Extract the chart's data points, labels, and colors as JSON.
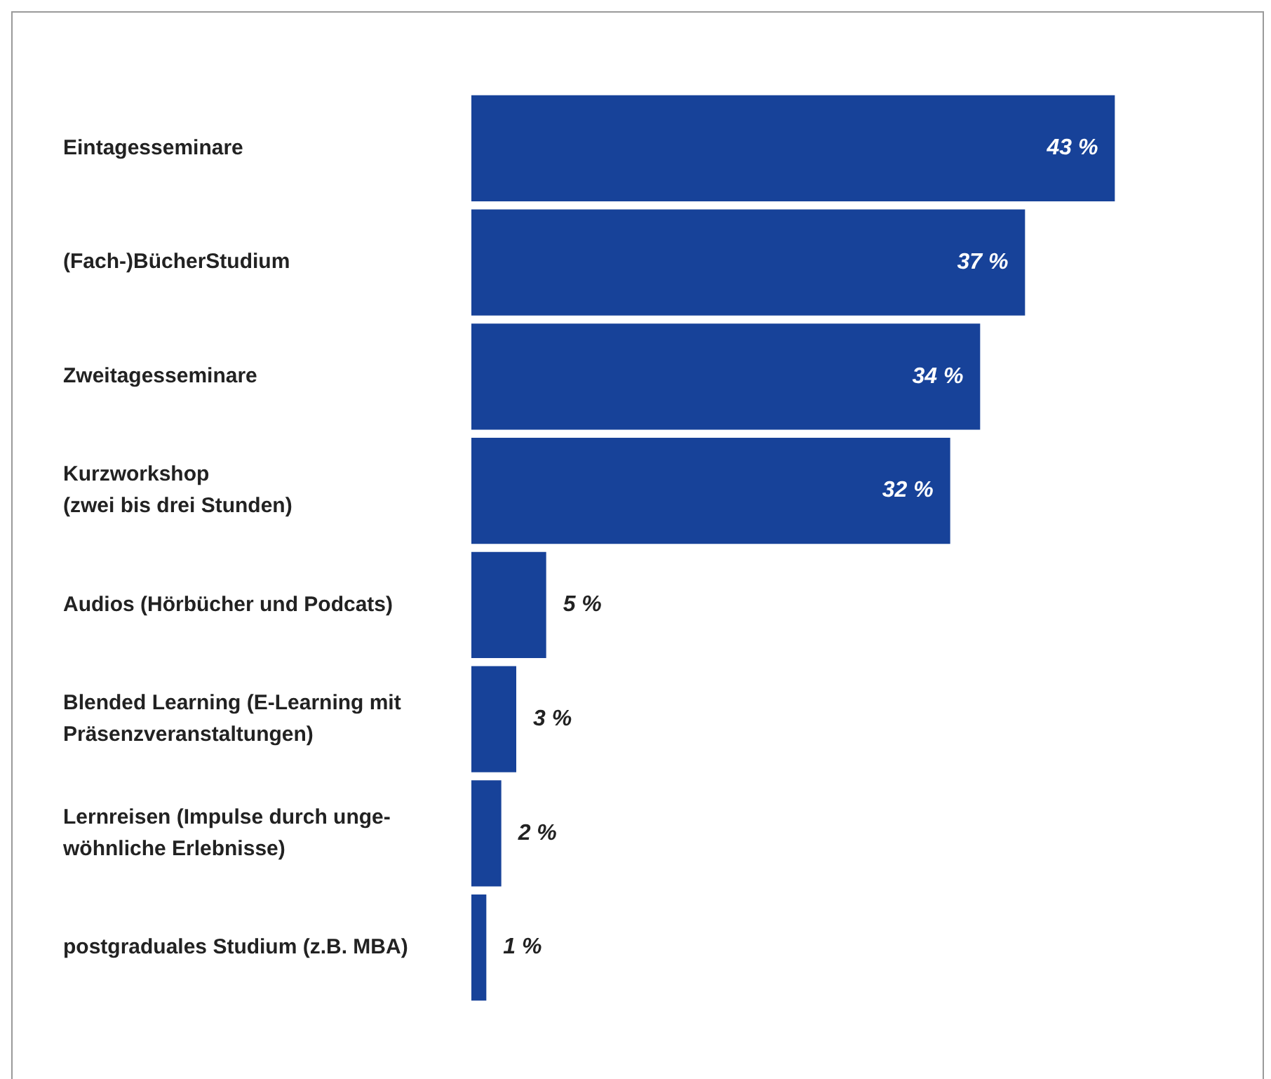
{
  "chart_data": {
    "type": "bar",
    "orientation": "horizontal",
    "categories": [
      "Eintagesseminare",
      "(Fach-)BücherStudium",
      "Zweitagesseminare",
      "Kurzworkshop\n(zwei bis drei Stunden)",
      "Audios (Hörbücher und Podcats)",
      "Blended Learning (E-Learning mit\nPräsenzveranstaltungen)",
      "Lernreisen (Impulse durch unge-\nwöhnliche Erlebnisse)",
      "postgraduales Studium (z.B. MBA)"
    ],
    "values": [
      43,
      37,
      34,
      32,
      5,
      3,
      2,
      1
    ],
    "value_labels": [
      "43 %",
      "37 %",
      "34 %",
      "32 %",
      "5 %",
      "3 %",
      "2 %",
      "1 %"
    ],
    "color": "#174299",
    "tick_labels": "y",
    "grid": false,
    "legend": false
  }
}
